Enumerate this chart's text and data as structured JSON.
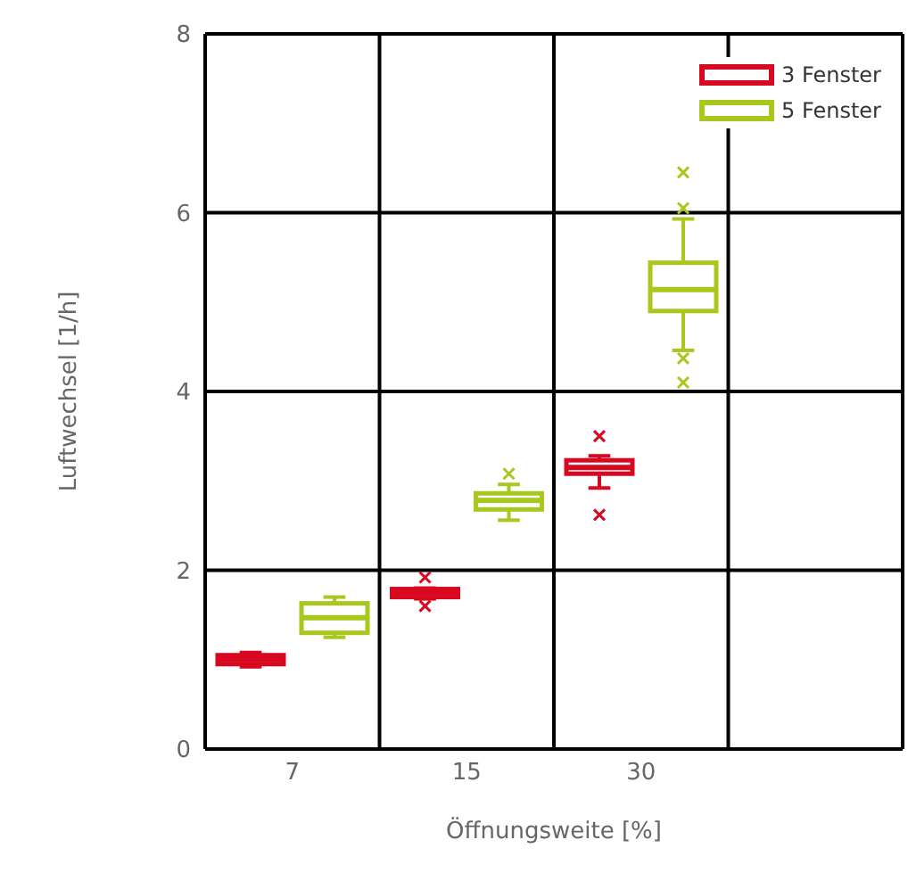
{
  "chart_data": {
    "type": "box",
    "xlabel": "Öffnungsweite [%]",
    "ylabel": "Luftwechsel [1/h]",
    "categories": [
      "7",
      "15",
      "30",
      null
    ],
    "series": [
      {
        "name": "3 Fenster",
        "color": "#d7081f",
        "boxes": [
          {
            "low": 0.92,
            "q1": 0.95,
            "median": 1.0,
            "q3": 1.05,
            "high": 1.08
          },
          {
            "low": 1.68,
            "q1": 1.7,
            "median": 1.75,
            "q3": 1.79,
            "high": 1.8,
            "outliers": [
              1.92,
              1.6
            ]
          },
          {
            "low": 2.92,
            "q1": 3.08,
            "median": 3.15,
            "q3": 3.23,
            "high": 3.28,
            "outliers": [
              3.5,
              2.62
            ]
          },
          null
        ]
      },
      {
        "name": "5 Fenster",
        "color": "#a8c81e",
        "boxes": [
          {
            "low": 1.25,
            "q1": 1.3,
            "median": 1.47,
            "q3": 1.63,
            "high": 1.7
          },
          {
            "low": 2.56,
            "q1": 2.68,
            "median": 2.78,
            "q3": 2.86,
            "high": 2.96,
            "outliers": [
              3.08
            ]
          },
          {
            "low": 4.46,
            "q1": 4.9,
            "median": 5.14,
            "q3": 5.44,
            "high": 5.93,
            "outliers": [
              6.45,
              6.05,
              4.37,
              4.1
            ]
          },
          null
        ]
      }
    ],
    "ylim": [
      0,
      8
    ],
    "yticks": [
      0,
      2,
      4,
      6,
      8
    ],
    "grid": true,
    "legend": "top right"
  }
}
